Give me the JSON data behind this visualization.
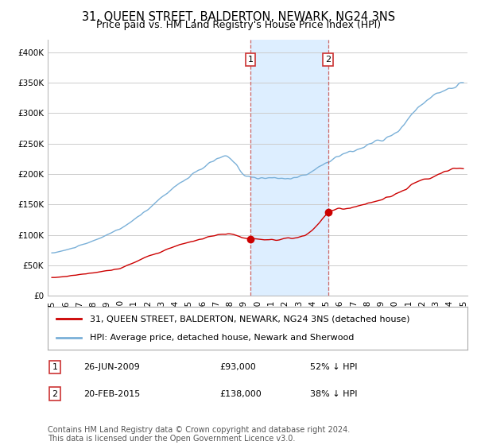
{
  "title": "31, QUEEN STREET, BALDERTON, NEWARK, NG24 3NS",
  "subtitle": "Price paid vs. HM Land Registry's House Price Index (HPI)",
  "ylim": [
    0,
    420000
  ],
  "yticks": [
    0,
    50000,
    100000,
    150000,
    200000,
    250000,
    300000,
    350000,
    400000
  ],
  "xlim_start": 1994.7,
  "xlim_end": 2025.3,
  "background_color": "#ffffff",
  "plot_bg_color": "#ffffff",
  "grid_color": "#cccccc",
  "hpi_color": "#7ab0d8",
  "price_color": "#cc0000",
  "sale1_x": 2009.48,
  "sale1_y": 93000,
  "sale1_label": "1",
  "sale1_date": "26-JUN-2009",
  "sale1_price": "£93,000",
  "sale1_info": "52% ↓ HPI",
  "sale2_x": 2015.13,
  "sale2_y": 138000,
  "sale2_label": "2",
  "sale2_date": "20-FEB-2015",
  "sale2_price": "£138,000",
  "sale2_info": "38% ↓ HPI",
  "vline_color": "#cc6666",
  "vline_shade_color": "#ddeeff",
  "legend_line1": "31, QUEEN STREET, BALDERTON, NEWARK, NG24 3NS (detached house)",
  "legend_line2": "HPI: Average price, detached house, Newark and Sherwood",
  "footer": "Contains HM Land Registry data © Crown copyright and database right 2024.\nThis data is licensed under the Open Government Licence v3.0.",
  "title_fontsize": 10.5,
  "subtitle_fontsize": 9,
  "tick_fontsize": 7.5,
  "legend_fontsize": 8,
  "footer_fontsize": 7
}
